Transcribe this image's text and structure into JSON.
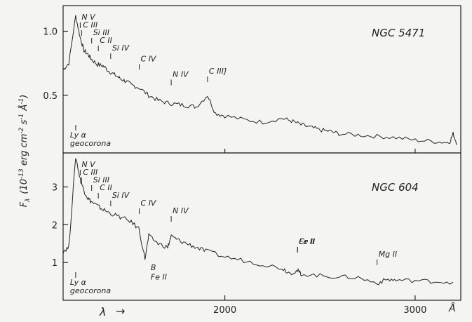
{
  "chart_data": {
    "type": "line",
    "x_axis": {
      "label": "λ",
      "unit": "Å",
      "arrow": "→",
      "range": [
        1150,
        3240
      ],
      "ticks": [
        2000,
        3000
      ],
      "tick_labels": [
        "2000",
        "3000"
      ]
    },
    "y_axis_label": "F_λ (10^-13 erg cm^-2 s^-1 Å^-1)",
    "y_axis_label_parts": {
      "F": "F",
      "sub": "λ",
      "open": "(10",
      "e1": "-13",
      "mid": " erg cm",
      "e2": "-2",
      "s": " s",
      "e3": "-1",
      "A": " Å",
      "e4": "-1",
      "close": ")"
    },
    "panels": [
      {
        "title": "NGC  5471",
        "ylim": [
          0.05,
          1.2
        ],
        "yticks": [
          0.5,
          1.0
        ],
        "ytick_labels": [
          "0.5",
          "1.0"
        ],
        "series": {
          "x": [
            1150,
            1180,
            1216,
            1240,
            1260,
            1280,
            1300,
            1330,
            1360,
            1390,
            1420,
            1450,
            1480,
            1510,
            1548,
            1600,
            1650,
            1700,
            1750,
            1800,
            1850,
            1909,
            1950,
            2000,
            2100,
            2200,
            2300,
            2350,
            2400,
            2450,
            2500,
            2550,
            2600,
            2700,
            2800,
            2900,
            3000,
            3100,
            3180,
            3200,
            3220
          ],
          "y": [
            0.7,
            0.75,
            1.12,
            0.95,
            0.85,
            0.82,
            0.78,
            0.74,
            0.73,
            0.69,
            0.66,
            0.63,
            0.61,
            0.58,
            0.56,
            0.5,
            0.46,
            0.44,
            0.43,
            0.42,
            0.41,
            0.5,
            0.36,
            0.34,
            0.31,
            0.29,
            0.32,
            0.3,
            0.27,
            0.25,
            0.23,
            0.22,
            0.2,
            0.19,
            0.18,
            0.17,
            0.15,
            0.14,
            0.13,
            0.2,
            0.12
          ]
        },
        "line_ids": [
          {
            "label": "N V",
            "x": 1240
          },
          {
            "label": "C III",
            "x": 1247
          },
          {
            "label": "Si III",
            "x": 1300
          },
          {
            "label": "C II",
            "x": 1335
          },
          {
            "label": "Si IV",
            "x": 1400
          },
          {
            "label": "C IV",
            "x": 1550
          },
          {
            "label": "N IV",
            "x": 1718
          },
          {
            "label": "C III]",
            "x": 1909
          }
        ],
        "annotations": [
          {
            "label": "Ly α",
            "x": 1216
          },
          {
            "label": "geocorona",
            "x": 1216
          }
        ]
      },
      {
        "title": "NGC  604",
        "ylim": [
          0.0,
          3.9
        ],
        "yticks": [
          1,
          2,
          3
        ],
        "ytick_labels": [
          "1",
          "2",
          "3"
        ],
        "series": {
          "x": [
            1150,
            1180,
            1216,
            1240,
            1260,
            1280,
            1300,
            1330,
            1360,
            1400,
            1450,
            1500,
            1548,
            1580,
            1600,
            1650,
            1700,
            1718,
            1750,
            1800,
            1850,
            1900,
            2000,
            2100,
            2200,
            2300,
            2343,
            2382,
            2400,
            2500,
            2600,
            2700,
            2800,
            2850,
            2900,
            3000,
            3100,
            3200
          ],
          "y": [
            1.3,
            1.4,
            3.8,
            3.2,
            2.9,
            2.7,
            2.6,
            2.5,
            2.4,
            2.3,
            2.2,
            2.1,
            1.9,
            1.1,
            1.7,
            1.5,
            1.4,
            1.7,
            1.6,
            1.5,
            1.4,
            1.3,
            1.15,
            1.05,
            0.95,
            0.85,
            0.72,
            0.78,
            0.7,
            0.65,
            0.62,
            0.6,
            0.45,
            0.55,
            0.53,
            0.52,
            0.5,
            0.48
          ]
        },
        "line_ids": [
          {
            "label": "N V",
            "x": 1240
          },
          {
            "label": "C III",
            "x": 1247
          },
          {
            "label": "Si III",
            "x": 1300
          },
          {
            "label": "C II",
            "x": 1335
          },
          {
            "label": "Si IV",
            "x": 1400
          },
          {
            "label": "C IV",
            "x": 1550
          },
          {
            "label": "N IV",
            "x": 1718
          },
          {
            "label": "Fe II",
            "x": 2382
          },
          {
            "label": "Cr II",
            "x": 2382
          },
          {
            "label": "Mg II",
            "x": 2800
          }
        ],
        "annotations": [
          {
            "label": "Ly α",
            "x": 1216
          },
          {
            "label": "geocorona",
            "x": 1216
          },
          {
            "label": "B",
            "x": 1640
          },
          {
            "label": "Fe II",
            "x": 1640
          }
        ]
      }
    ]
  }
}
